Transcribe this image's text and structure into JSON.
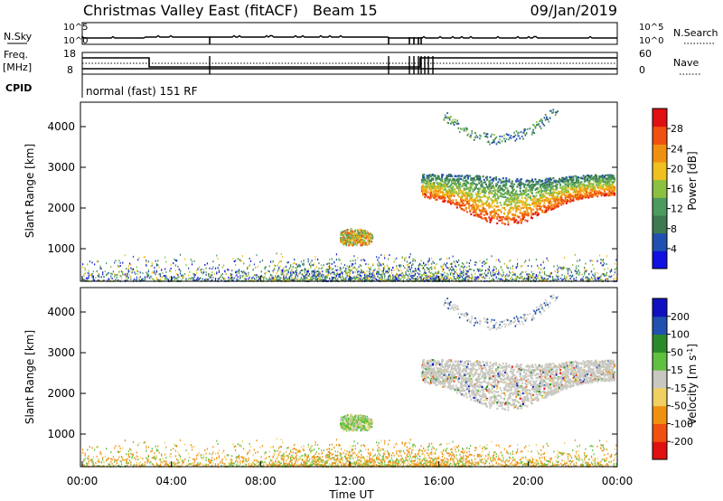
{
  "header": {
    "title": "Christmas Valley East (fitACF)",
    "beam": "Beam 15",
    "date": "09/Jan/2019"
  },
  "status_panels": {
    "left_labels": {
      "nsky": "N.Sky",
      "freq_top": "Freq.",
      "freq_unit": "[MHz]",
      "cpid": "CPID"
    },
    "right_labels": {
      "nsearch": "N.Search",
      "nave": "Nave"
    },
    "noise_ticks_left": [
      "10^5",
      "10^0"
    ],
    "noise_ticks_right": [
      "10^5",
      "10^0"
    ],
    "freq_ticks": [
      "18",
      "8"
    ],
    "nave_ticks": [
      "60",
      "0"
    ],
    "cpid_text": "normal (fast) 151 RF"
  },
  "chart_data": [
    {
      "type": "heatmap",
      "panel": "power",
      "xlabel": "",
      "ylabel": "Slant Range [km]",
      "xlim": [
        0,
        24
      ],
      "ylim": [
        200,
        4600
      ],
      "yticks": [
        1000,
        2000,
        3000,
        4000
      ],
      "colorbar": {
        "label": "Power [dB]",
        "ticks": [
          "28",
          "24",
          "20",
          "16",
          "12",
          "8",
          "4"
        ]
      },
      "echo_regions": [
        {
          "name": "ground-scatter",
          "x": [
            0,
            24
          ],
          "y": [
            200,
            500
          ]
        },
        {
          "name": "near-range patch",
          "x": [
            11.6,
            13.4
          ],
          "y": [
            1100,
            1500
          ]
        },
        {
          "name": "main band",
          "x": [
            15.2,
            23.8
          ],
          "y": [
            1550,
            2900
          ]
        },
        {
          "name": "upper arc",
          "x": [
            16.2,
            21.6
          ],
          "y": [
            3600,
            4400
          ]
        }
      ]
    },
    {
      "type": "heatmap",
      "panel": "velocity",
      "xlabel": "Time UT",
      "ylabel": "Slant Range [km]",
      "xlim": [
        0,
        24
      ],
      "ylim": [
        200,
        4600
      ],
      "yticks": [
        1000,
        2000,
        3000,
        4000
      ],
      "xticks": [
        "00:00",
        "04:00",
        "08:00",
        "12:00",
        "16:00",
        "20:00",
        "00:00"
      ],
      "colorbar": {
        "label": "Velocity [m s^-1]",
        "ticks": [
          "200",
          "100",
          "50",
          "15",
          "-15",
          "-50",
          "-100",
          "-200"
        ]
      }
    }
  ],
  "colors": {
    "power_scale": [
      "#1010e0",
      "#2050b0",
      "#3c7a50",
      "#4c9a60",
      "#8cc040",
      "#f0c020",
      "#f09010",
      "#f05010",
      "#e01010"
    ],
    "velocity_scale": [
      "#e01010",
      "#f05010",
      "#f09010",
      "#f0d060",
      "#c8c8c0",
      "#60c040",
      "#2a8a2a",
      "#2050b0",
      "#1010c0"
    ]
  }
}
